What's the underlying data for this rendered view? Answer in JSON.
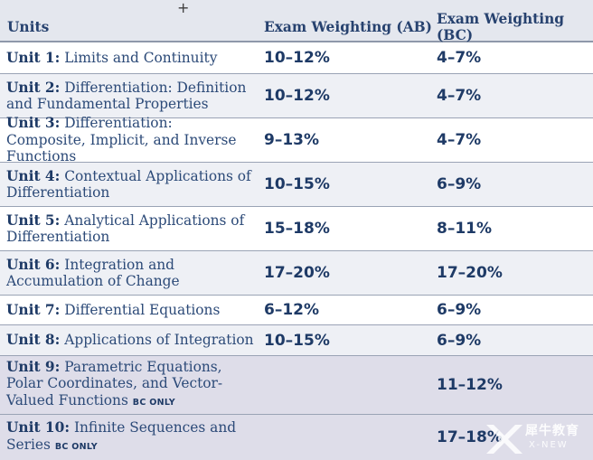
{
  "header": {
    "units": "Units",
    "ab": "Exam Weighting (AB)",
    "bc": "Exam Weighting (BC)"
  },
  "rows": [
    {
      "label": "Unit 1:",
      "title": "Limits and Continuity",
      "ab": "10–12%",
      "bc": "4–7%"
    },
    {
      "label": "Unit 2:",
      "title": "Differentiation: Definition and Fundamental Properties",
      "ab": "10–12%",
      "bc": "4–7%"
    },
    {
      "label": "Unit 3:",
      "title": "Differentiation: Composite, Implicit, and Inverse Functions",
      "ab": "9–13%",
      "bc": "4–7%"
    },
    {
      "label": "Unit 4:",
      "title": "Contextual Applications of Differentiation",
      "ab": "10–15%",
      "bc": "6–9%"
    },
    {
      "label": "Unit 5:",
      "title": "Analytical Applications of Differentiation",
      "ab": "15–18%",
      "bc": "8–11%"
    },
    {
      "label": "Unit 6:",
      "title": "Integration and Accumulation of Change",
      "ab": "17–20%",
      "bc": "17–20%"
    },
    {
      "label": "Unit 7:",
      "title": "Differential Equations",
      "ab": "6–12%",
      "bc": "6–9%"
    },
    {
      "label": "Unit 8:",
      "title": "Applications of Integration",
      "ab": "10–15%",
      "bc": "6–9%"
    },
    {
      "label": "Unit 9:",
      "title": "Parametric Equations, Polar Coordinates, and Vector-Valued Functions",
      "tag": "BC ONLY",
      "ab": "",
      "bc": "11–12%"
    },
    {
      "label": "Unit 10:",
      "title": "Infinite Sequences and Series",
      "tag": "BC ONLY",
      "ab": "",
      "bc": "17–18%"
    }
  ],
  "watermark": {
    "cn": "犀牛教育",
    "en": "X-NEW"
  }
}
